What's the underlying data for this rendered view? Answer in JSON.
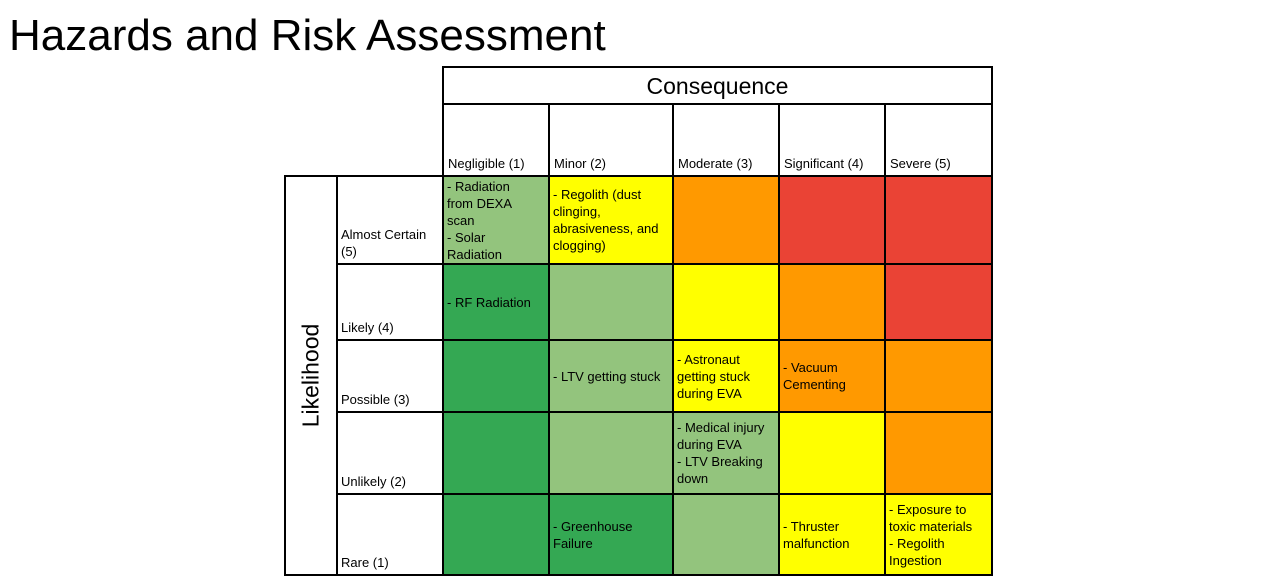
{
  "title": "Hazards and Risk Assessment",
  "matrix": {
    "consequence_label": "Consequence",
    "likelihood_label": "Likelihood",
    "columns": [
      "Negligible (1)",
      "Minor (2)",
      "Moderate (3)",
      "Significant (4)",
      "Severe (5)"
    ],
    "rows": [
      "Almost Certain\n(5)",
      "Likely (4)",
      "Possible (3)",
      "Unlikely (2)",
      "Rare (1)"
    ],
    "colors": {
      "dark_green": "#34a853",
      "light_green": "#93c47d",
      "yellow": "#ffff00",
      "orange": "#ff9900",
      "red": "#ea4335"
    },
    "cells": [
      [
        {
          "color": "light_green",
          "text": "- Radiation\nfrom DEXA\nscan\n- Solar\nRadiation"
        },
        {
          "color": "yellow",
          "text": "- Regolith (dust\nclinging,\nabrasiveness, and\nclogging)"
        },
        {
          "color": "orange",
          "text": ""
        },
        {
          "color": "red",
          "text": ""
        },
        {
          "color": "red",
          "text": ""
        }
      ],
      [
        {
          "color": "dark_green",
          "text": "- RF Radiation"
        },
        {
          "color": "light_green",
          "text": ""
        },
        {
          "color": "yellow",
          "text": ""
        },
        {
          "color": "orange",
          "text": ""
        },
        {
          "color": "red",
          "text": ""
        }
      ],
      [
        {
          "color": "dark_green",
          "text": ""
        },
        {
          "color": "light_green",
          "text": "- LTV getting stuck"
        },
        {
          "color": "yellow",
          "text": "- Astronaut\ngetting stuck\nduring EVA"
        },
        {
          "color": "orange",
          "text": "- Vacuum\nCementing"
        },
        {
          "color": "orange",
          "text": ""
        }
      ],
      [
        {
          "color": "dark_green",
          "text": ""
        },
        {
          "color": "light_green",
          "text": ""
        },
        {
          "color": "light_green",
          "text": "- Medical injury\nduring EVA\n- LTV Breaking\ndown"
        },
        {
          "color": "yellow",
          "text": ""
        },
        {
          "color": "orange",
          "text": ""
        }
      ],
      [
        {
          "color": "dark_green",
          "text": ""
        },
        {
          "color": "dark_green",
          "text": "- Greenhouse\nFailure"
        },
        {
          "color": "light_green",
          "text": ""
        },
        {
          "color": "yellow",
          "text": "- Thruster\nmalfunction"
        },
        {
          "color": "yellow",
          "text": "- Exposure to\ntoxic materials\n- Regolith\nIngestion"
        }
      ]
    ]
  }
}
